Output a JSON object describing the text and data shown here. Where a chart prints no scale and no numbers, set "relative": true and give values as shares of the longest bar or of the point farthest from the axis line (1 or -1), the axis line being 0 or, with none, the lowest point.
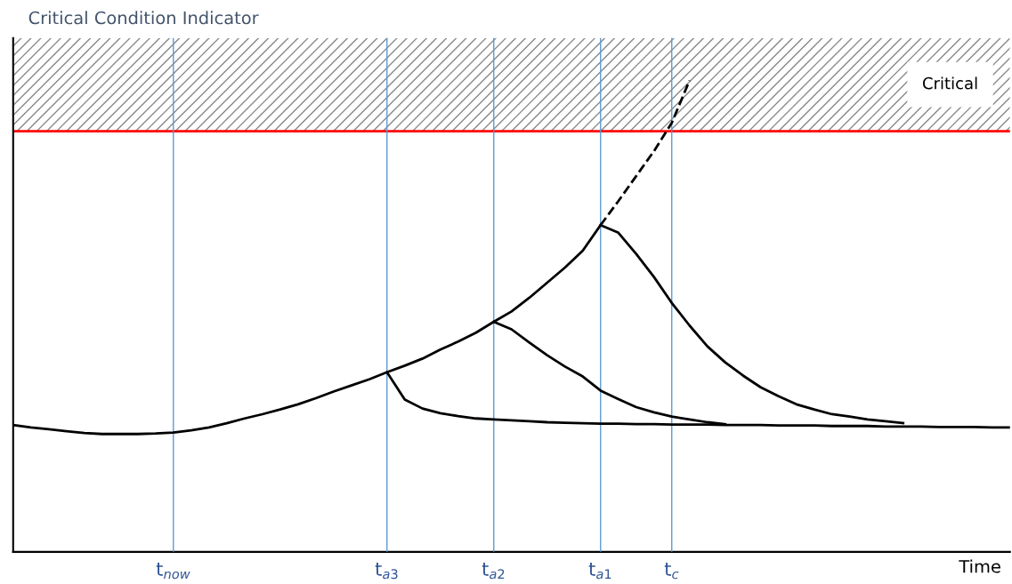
{
  "chart_data": {
    "type": "line",
    "relative": true,
    "ylabel": "Critical Condition Indicator",
    "xlabel": "Time",
    "categories": [
      null,
      null,
      null,
      null,
      null,
      null,
      null,
      null,
      null,
      "t$_{now}$",
      null,
      null,
      null,
      null,
      null,
      null,
      null,
      null,
      null,
      null,
      null,
      "t$_{a3}$",
      null,
      null,
      null,
      null,
      null,
      "t$_{a2}$",
      null,
      null,
      null,
      null,
      null,
      "t$_{a1}$",
      null,
      null,
      null,
      "t$_{c}$",
      null,
      null,
      null,
      null,
      null,
      null,
      null,
      null,
      null,
      null,
      null,
      null,
      null,
      null,
      null,
      null,
      null,
      null,
      null
    ],
    "grid": "x",
    "legend": false,
    "series": [
      {
        "color": "#000000",
        "values": [
          0.269,
          0.264,
          0.26,
          0.256,
          0.252,
          0.25,
          0.25,
          0.25,
          0.251,
          0.253,
          0.258,
          0.264,
          0.273,
          0.283,
          0.292,
          0.302,
          0.313,
          0.326,
          0.34,
          0.353,
          0.366,
          0.381,
          0.395,
          0.41,
          0.429,
          0.446,
          0.465,
          0.488,
          0.51,
          0.539,
          0.571,
          0.603,
          0.639,
          0.693,
          null,
          null,
          null,
          null,
          null,
          null,
          null,
          null,
          null,
          null,
          null,
          null,
          null,
          null,
          null,
          null,
          null,
          null,
          null,
          null,
          null,
          null,
          null
        ]
      },
      {
        "color": "#000000",
        "line_style": "dashed",
        "values": [
          null,
          null,
          null,
          null,
          null,
          null,
          null,
          null,
          null,
          null,
          null,
          null,
          null,
          null,
          null,
          null,
          null,
          null,
          null,
          null,
          null,
          null,
          null,
          null,
          null,
          null,
          null,
          null,
          null,
          null,
          null,
          null,
          null,
          0.693,
          0.744,
          0.797,
          0.85,
          0.91,
          1.0,
          null,
          null,
          null,
          null,
          null,
          null,
          null,
          null,
          null,
          null,
          null,
          null,
          null,
          null,
          null,
          null,
          null,
          null
        ]
      },
      {
        "color": "#000000",
        "values": [
          null,
          null,
          null,
          null,
          null,
          null,
          null,
          null,
          null,
          null,
          null,
          null,
          null,
          null,
          null,
          null,
          null,
          null,
          null,
          null,
          null,
          0.381,
          0.323,
          0.304,
          0.294,
          0.288,
          0.283,
          0.281,
          0.279,
          0.277,
          0.275,
          0.274,
          0.273,
          0.272,
          0.272,
          0.271,
          0.271,
          0.27,
          0.27,
          0.27,
          0.269,
          0.269,
          0.269,
          0.268,
          0.268,
          0.268,
          0.267,
          0.267,
          0.267,
          0.266,
          0.266,
          0.266,
          0.265,
          0.265,
          0.265,
          0.264,
          0.264
        ]
      },
      {
        "color": "#000000",
        "values": [
          null,
          null,
          null,
          null,
          null,
          null,
          null,
          null,
          null,
          null,
          null,
          null,
          null,
          null,
          null,
          null,
          null,
          null,
          null,
          null,
          null,
          null,
          null,
          null,
          null,
          null,
          null,
          0.488,
          0.472,
          0.444,
          0.417,
          0.393,
          0.372,
          0.342,
          0.324,
          0.307,
          0.296,
          0.287,
          0.281,
          0.275,
          0.271,
          null,
          null,
          null,
          null,
          null,
          null,
          null,
          null,
          null,
          null,
          null,
          null,
          null,
          null,
          null,
          null
        ]
      },
      {
        "color": "#000000",
        "values": [
          null,
          null,
          null,
          null,
          null,
          null,
          null,
          null,
          null,
          null,
          null,
          null,
          null,
          null,
          null,
          null,
          null,
          null,
          null,
          null,
          null,
          null,
          null,
          null,
          null,
          null,
          null,
          null,
          null,
          null,
          null,
          null,
          null,
          0.693,
          0.677,
          0.632,
          0.583,
          0.528,
          0.48,
          0.436,
          0.402,
          0.374,
          0.349,
          0.33,
          0.313,
          0.302,
          0.292,
          0.287,
          0.281,
          0.277,
          0.273,
          null,
          null,
          null,
          null,
          null,
          null
        ]
      }
    ],
    "ref_lines": [
      {
        "axis": "y",
        "value": 0.892,
        "color": "#ff0000"
      }
    ],
    "bands": [
      {
        "axis": "y",
        "from": 0.892,
        "to": 1.09,
        "label": "Critical",
        "color": "#888888"
      }
    ]
  }
}
